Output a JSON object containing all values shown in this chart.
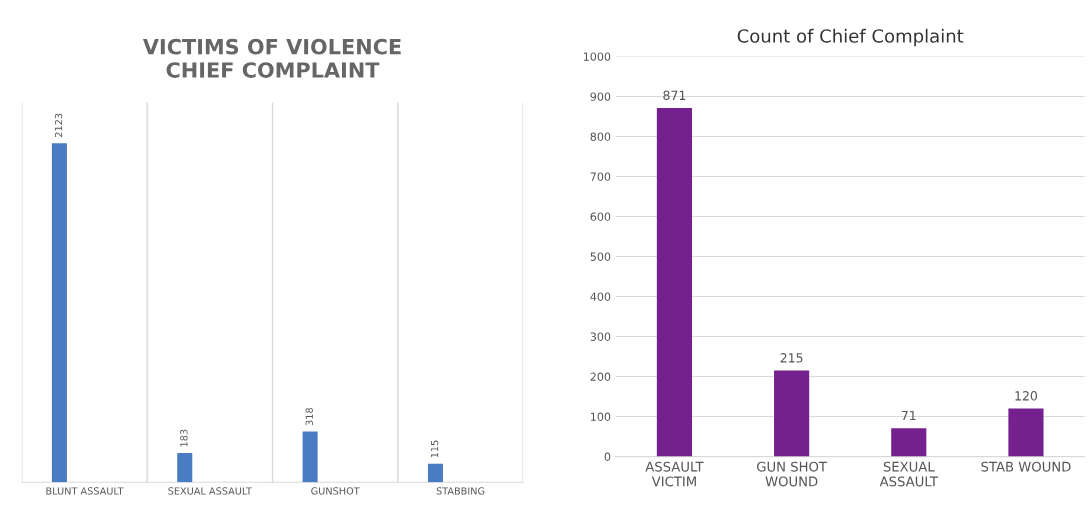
{
  "chart_data": [
    {
      "type": "bar",
      "title": "VICTIMS OF VIOLENCE\nCHIEF COMPLAINT",
      "categories": [
        "BLUNT ASSAULT",
        "SEXUAL ASSAULT",
        "GUNSHOT",
        "STABBING"
      ],
      "values": [
        2123,
        183,
        318,
        115
      ],
      "color": "#4a7cc4",
      "data_labels": true,
      "grid": "x",
      "tick_labels": "x"
    },
    {
      "type": "bar",
      "title": "Count of Chief Complaint",
      "categories": [
        "ASSAULT\nVICTIM",
        "GUN SHOT\nWOUND",
        "SEXUAL\nASSAULT",
        "STAB WOUND"
      ],
      "values": [
        871,
        215,
        71,
        120
      ],
      "color": "#74208f",
      "data_labels": true,
      "ylim": [
        0,
        1000
      ],
      "yticks": [
        0,
        100,
        200,
        300,
        400,
        500,
        600,
        700,
        800,
        900,
        1000
      ],
      "grid": "y"
    }
  ]
}
